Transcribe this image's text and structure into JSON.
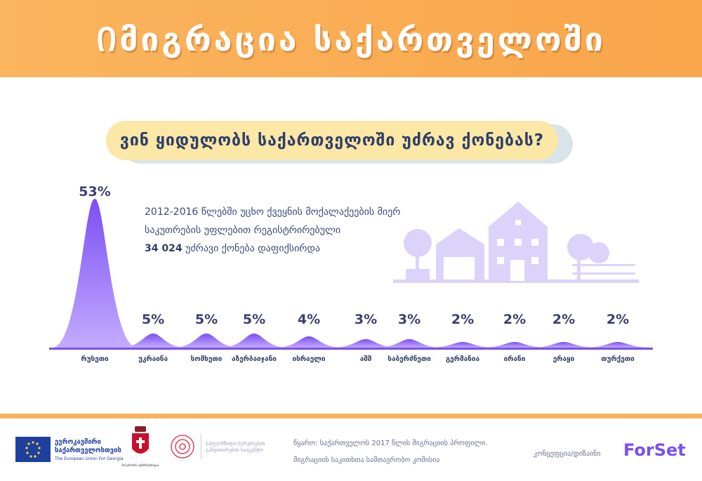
{
  "header": {
    "title": "Იმიგრაცია საქართველოში"
  },
  "question": "ვინ ყიდულობს საქართველოში უძრავ ქონებას?",
  "info": {
    "line1": "2012-2016 წლებში უცხო ქვეყნის მოქალაქეების მიერ",
    "line2": "საკუთრების უფლებით რეგისტრირებული",
    "highlight": "34 024",
    "line3_rest": " უძრავი ქონება დაფიქსირდა"
  },
  "colors": {
    "header": "#f9a54a",
    "accent": "#7b4ff2",
    "curve_top": "#7b4ff2",
    "curve_bottom": "#b79cff",
    "house": "#dcd3fb"
  },
  "chart_data": {
    "type": "area",
    "title": "ვინ ყიდულობს საქართველოში უძრავ ქონებას?",
    "categories": [
      "რუსეთი",
      "უკრაინა",
      "სომხეთი",
      "აზერბაიჯანი",
      "ისრაელი",
      "აშშ",
      "საბერძნეთი",
      "გერმანია",
      "ირანი",
      "ერაყი",
      "თურქეთი"
    ],
    "values": [
      53,
      5,
      5,
      5,
      4,
      3,
      3,
      2,
      2,
      2,
      2
    ],
    "labels": [
      "53%",
      "5%",
      "5%",
      "5%",
      "4%",
      "3%",
      "3%",
      "2%",
      "2%",
      "2%",
      "2%"
    ],
    "unit": "%",
    "xlabel": "",
    "ylabel": "",
    "ylim": [
      0,
      53
    ]
  },
  "footer": {
    "eu_text1": "ევროკავშირი",
    "eu_text2": "საქართველოსთვის",
    "eu_sub": "The European Union For Georgia",
    "coat_text": "მთავრობის ადმინისტრაცია",
    "pmo_text1": "სახელმწიფო სერვისების",
    "pmo_text2": "განვითარების სააგენტო",
    "source1": "წყარო: საქართველოს 2017 წლის მიგრაციის პროფილი.",
    "source2": "მიგრაციის საკითხთა სამთავრობო კომისია",
    "concept": "კონცეფცია/დიზაინი",
    "brand": "ForSet"
  }
}
